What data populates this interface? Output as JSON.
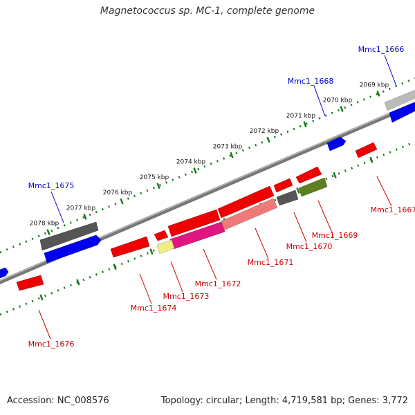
{
  "title": "Magnetococcus sp. MC-1, complete genome",
  "footer": {
    "accession": "Accession: NC_008576",
    "summary": "Topology: circular; Length: 4,719,581 bp; Genes: 3,772"
  },
  "scale": {
    "tick_labels": [
      "2069 kbp",
      "2070 kbp",
      "2071 kbp",
      "2072 kbp",
      "2073 kbp",
      "2074 kbp",
      "2075 kbp",
      "2076 kbp",
      "2077 kbp",
      "2078 kbp"
    ],
    "tick_color": "#1a7a1a"
  },
  "genes": [
    {
      "label": "Mmc1_1666",
      "strand": "forward",
      "color": "#0000cc"
    },
    {
      "label": "Mmc1_1668",
      "strand": "forward",
      "color": "#0000cc"
    },
    {
      "label": "Mmc1_1675",
      "strand": "forward",
      "color": "#0000cc"
    },
    {
      "label": "Mmc1_1667",
      "strand": "reverse",
      "color": "#cc0000"
    },
    {
      "label": "Mmc1_1669",
      "strand": "reverse",
      "color": "#cc0000"
    },
    {
      "label": "Mmc1_1670",
      "strand": "reverse",
      "color": "#cc0000"
    },
    {
      "label": "Mmc1_1671",
      "strand": "reverse",
      "color": "#cc0000"
    },
    {
      "label": "Mmc1_1672",
      "strand": "reverse",
      "color": "#cc0000"
    },
    {
      "label": "Mmc1_1673",
      "strand": "reverse",
      "color": "#cc0000"
    },
    {
      "label": "Mmc1_1674",
      "strand": "reverse",
      "color": "#cc0000"
    },
    {
      "label": "Mmc1_1676",
      "strand": "reverse",
      "color": "#cc0000"
    }
  ],
  "colors": {
    "forward_feature": "#0000ee",
    "reverse_feature": "#ee0000",
    "backbone": "#888888",
    "dark_gray_feature": "#555555",
    "light_gray_feature": "#bbbbbb",
    "magenta_feature": "#e0157f",
    "pink_feature": "#ee7a7a",
    "yellow_feature": "#eeee88",
    "olive_feature": "#5e7f1f"
  }
}
